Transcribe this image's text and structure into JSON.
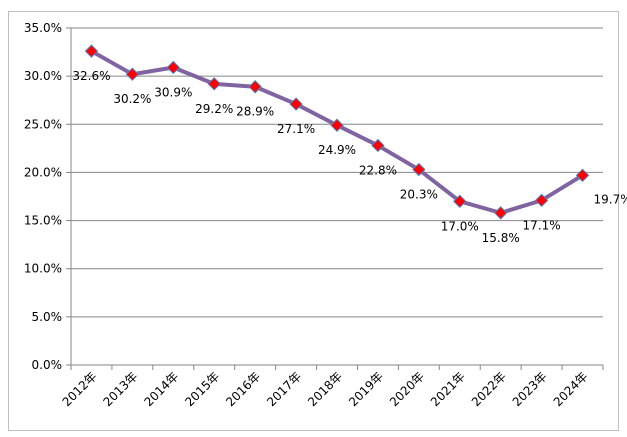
{
  "chart_data": {
    "type": "line",
    "title": "",
    "xlabel": "",
    "ylabel": "",
    "categories": [
      "2012年",
      "2013年",
      "2014年",
      "2015年",
      "2016年",
      "2017年",
      "2018年",
      "2019年",
      "2020年",
      "2021年",
      "2022年",
      "2023年",
      "2024年"
    ],
    "series": [
      {
        "values": [
          32.6,
          30.2,
          30.9,
          29.2,
          28.9,
          27.1,
          24.9,
          22.8,
          20.3,
          17.0,
          15.8,
          17.1,
          19.7
        ],
        "data_labels": [
          "32.6%",
          "30.2%",
          "30.9%",
          "29.2%",
          "28.9%",
          "27.1%",
          "24.9%",
          "22.8%",
          "20.3%",
          "17.0%",
          "15.8%",
          "17.1%",
          "19.7%"
        ],
        "line_color": "#8064a2",
        "marker_color": "#ff0000",
        "marker_outline": "#4f81bd",
        "marker": "diamond"
      }
    ],
    "ylim": [
      0,
      35
    ],
    "yticks": [
      "0.0%",
      "5.0%",
      "10.0%",
      "15.0%",
      "20.0%",
      "25.0%",
      "30.0%",
      "35.0%"
    ],
    "grid": true,
    "legend": "none"
  }
}
